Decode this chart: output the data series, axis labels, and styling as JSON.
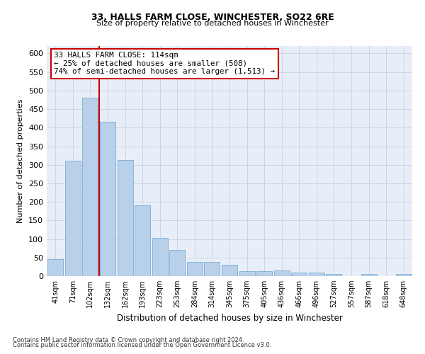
{
  "title1": "33, HALLS FARM CLOSE, WINCHESTER, SO22 6RE",
  "title2": "Size of property relative to detached houses in Winchester",
  "xlabel": "Distribution of detached houses by size in Winchester",
  "ylabel": "Number of detached properties",
  "footnote1": "Contains HM Land Registry data © Crown copyright and database right 2024.",
  "footnote2": "Contains public sector information licensed under the Open Government Licence v3.0.",
  "categories": [
    "41sqm",
    "71sqm",
    "102sqm",
    "132sqm",
    "162sqm",
    "193sqm",
    "223sqm",
    "253sqm",
    "284sqm",
    "314sqm",
    "345sqm",
    "375sqm",
    "405sqm",
    "436sqm",
    "466sqm",
    "496sqm",
    "527sqm",
    "557sqm",
    "587sqm",
    "618sqm",
    "648sqm"
  ],
  "values": [
    46,
    311,
    480,
    415,
    313,
    190,
    103,
    70,
    38,
    38,
    30,
    14,
    13,
    15,
    10,
    9,
    5,
    0,
    5,
    0,
    5
  ],
  "bar_color": "#b8d0ea",
  "bar_edge_color": "#7aadd4",
  "grid_color": "#ccd6e8",
  "background_color": "#e8eef8",
  "annotation_box_text": "33 HALLS FARM CLOSE: 114sqm\n← 25% of detached houses are smaller (508)\n74% of semi-detached houses are larger (1,513) →",
  "annotation_box_color": "#ffffff",
  "annotation_box_edge_color": "#cc0000",
  "vline_color": "#cc0000",
  "vline_x": 2.5,
  "ylim": [
    0,
    620
  ],
  "yticks": [
    0,
    50,
    100,
    150,
    200,
    250,
    300,
    350,
    400,
    450,
    500,
    550,
    600
  ]
}
